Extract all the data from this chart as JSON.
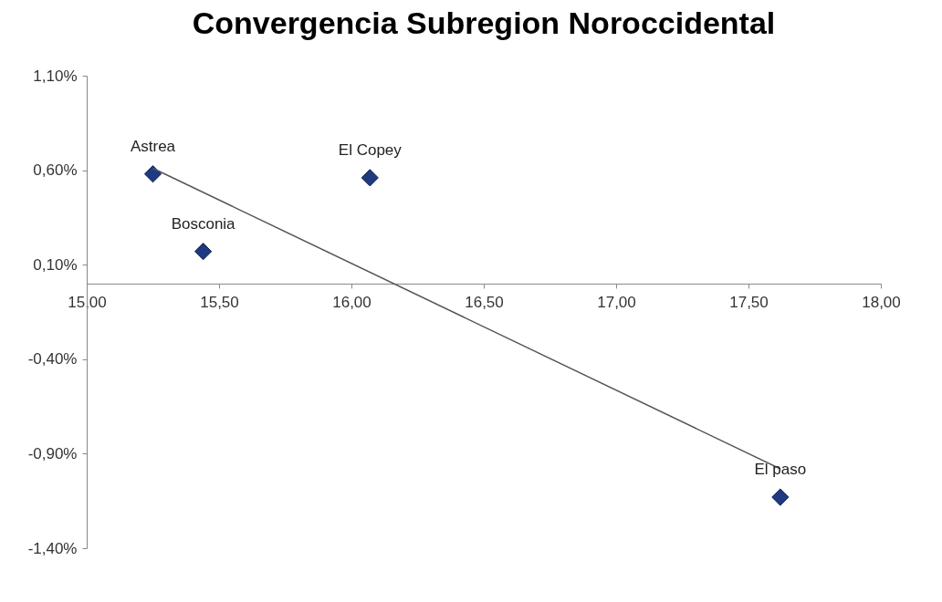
{
  "chart_data": {
    "type": "scatter",
    "title": "Convergencia Subregion Noroccidental",
    "series": [
      {
        "color": "#1f3a80",
        "marker": "diamond",
        "x": [
          15.25,
          15.44,
          16.07,
          17.62
        ],
        "values": [
          0.58,
          0.17,
          0.56,
          -1.13
        ]
      },
      {
        "type": "line",
        "color": "#555555",
        "marker": "none",
        "line_style": "solid",
        "x": [
          15.25,
          17.62
        ],
        "values": [
          0.61,
          -0.98
        ]
      }
    ],
    "xlim": [
      15,
      18
    ],
    "xticks": [
      {
        "value": 15,
        "label": "15,00"
      },
      {
        "value": 15.5,
        "label": "15,50"
      },
      {
        "value": 16,
        "label": "16,00"
      },
      {
        "value": 16.5,
        "label": "16,50"
      },
      {
        "value": 17,
        "label": "17,00"
      },
      {
        "value": 17.5,
        "label": "17,50"
      },
      {
        "value": 18,
        "label": "18,00"
      }
    ],
    "ylim": [
      -1.4,
      1.1
    ],
    "yticks": [
      {
        "value": -1.4,
        "label": "-1,40%"
      },
      {
        "value": -0.9,
        "label": "-0,90%"
      },
      {
        "value": -0.4,
        "label": "-0,40%"
      },
      {
        "value": 0.1,
        "label": "0,10%"
      },
      {
        "value": 0.6,
        "label": "0,60%"
      },
      {
        "value": 1.1,
        "label": "1,10%"
      }
    ],
    "grid": false,
    "annotations": [
      {
        "text": "Astrea",
        "x": 15.25,
        "y": 0.58
      },
      {
        "text": "Bosconia",
        "x": 15.44,
        "y": 0.17
      },
      {
        "text": "El Copey",
        "x": 16.07,
        "y": 0.56
      },
      {
        "text": "El paso",
        "x": 17.62,
        "y": -1.13
      }
    ]
  }
}
